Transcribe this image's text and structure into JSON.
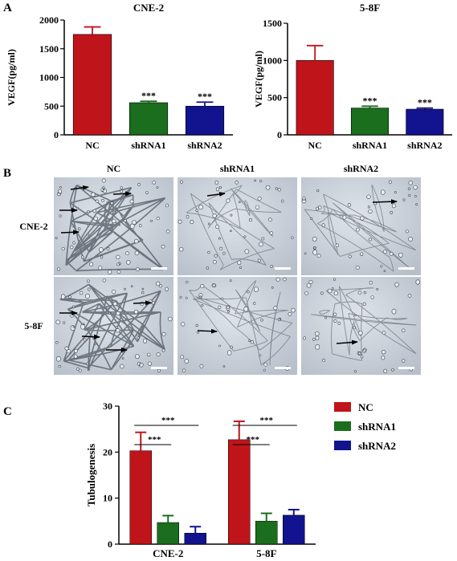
{
  "panels": {
    "a": "A",
    "b": "B",
    "c": "C"
  },
  "colors": {
    "NC": "#c0141b",
    "shRNA1": "#1a6e1d",
    "shRNA2": "#12138e"
  },
  "chart_data": [
    {
      "type": "bar",
      "title": "CNE-2",
      "ylabel": "VEGF(pg/ml)",
      "categories": [
        "NC",
        "shRNA1",
        "shRNA2"
      ],
      "values": [
        1750,
        560,
        500
      ],
      "errors": [
        130,
        25,
        70
      ],
      "significance": [
        "",
        "***",
        "***"
      ],
      "ylim": [
        0,
        2000
      ],
      "yticks": [
        "0",
        "500",
        "1000",
        "1500",
        "2000"
      ],
      "colors": [
        "#c0141b",
        "#1a6e1d",
        "#12138e"
      ]
    },
    {
      "type": "bar",
      "title": "5-8F",
      "ylabel": "VEGF(pg/ml)",
      "categories": [
        "NC",
        "shRNA1",
        "shRNA2"
      ],
      "values": [
        1000,
        360,
        345
      ],
      "errors": [
        200,
        25,
        15
      ],
      "significance": [
        "",
        "***",
        "***"
      ],
      "ylim": [
        0,
        1500
      ],
      "yticks": [
        "0",
        "500",
        "1000",
        "1500"
      ],
      "colors": [
        "#c0141b",
        "#1a6e1d",
        "#12138e"
      ]
    },
    {
      "type": "bar",
      "ylabel": "Tubulogenesis",
      "categories": [
        "CNE-2",
        "5-8F"
      ],
      "series": [
        {
          "name": "NC",
          "values": [
            20.3,
            22.7
          ],
          "errors": [
            4.0,
            4.0
          ]
        },
        {
          "name": "shRNA1",
          "values": [
            4.7,
            5.0
          ],
          "errors": [
            1.5,
            1.7
          ]
        },
        {
          "name": "shRNA2",
          "values": [
            2.4,
            6.3
          ],
          "errors": [
            1.4,
            1.2
          ]
        }
      ],
      "ylim": [
        0,
        30
      ],
      "yticks": [
        "0",
        "10",
        "20",
        "30"
      ],
      "comparisons": [
        {
          "group": "CNE-2",
          "label": "***",
          "from": "NC",
          "to": "shRNA1"
        },
        {
          "group": "CNE-2",
          "label": "***",
          "from": "NC",
          "to": "shRNA2"
        },
        {
          "group": "5-8F",
          "label": "***",
          "from": "NC",
          "to": "shRNA1"
        },
        {
          "group": "5-8F",
          "label": "***",
          "from": "NC",
          "to": "shRNA2"
        }
      ],
      "legend": "right"
    }
  ],
  "micrographs": {
    "columns": [
      "NC",
      "shRNA1",
      "shRNA2"
    ],
    "rows": [
      "CNE-2",
      "5-8F"
    ]
  }
}
